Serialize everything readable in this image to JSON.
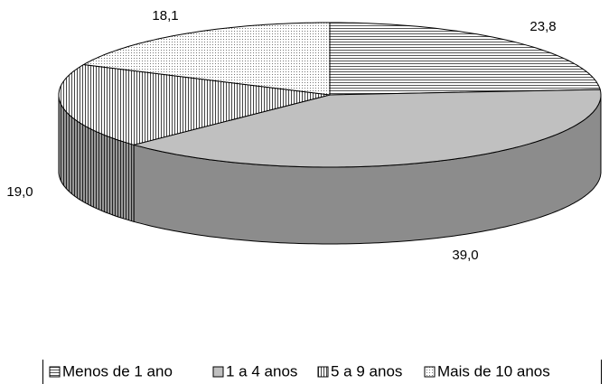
{
  "chart_data": {
    "type": "pie",
    "categories": [
      "Menos de 1 ano",
      "1 a 4 anos",
      "5 a 9 anos",
      "Mais de 10 anos"
    ],
    "values": [
      23.8,
      39.0,
      19.0,
      18.1
    ],
    "value_labels": [
      "23,8",
      "39,0",
      "19,0",
      "18,1"
    ],
    "legend": "bottom"
  }
}
